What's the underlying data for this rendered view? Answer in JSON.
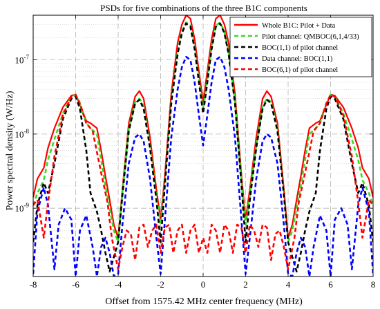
{
  "chart_data": {
    "type": "line",
    "title": "PSDs for five combinations of the three B1C components",
    "xlabel": "Offset from 1575.42 MHz center frequency (MHz)",
    "ylabel": "Power spectral density (W/Hz)",
    "xlim": [
      -8,
      8
    ],
    "ylim": [
      1.2e-10,
      4e-07
    ],
    "yscale": "log",
    "x_ticks": [
      -8,
      -6,
      -4,
      -2,
      0,
      2,
      4,
      6,
      8
    ],
    "x_tick_labels": [
      "-8",
      "-6",
      "-4",
      "-2",
      "0",
      "2",
      "4",
      "6",
      "8"
    ],
    "y_ticks": [
      1e-09,
      1e-08,
      1e-07
    ],
    "y_tick_labels": [
      {
        "base": "10",
        "exp": "-9"
      },
      {
        "base": "10",
        "exp": "-8"
      },
      {
        "base": "10",
        "exp": "-7"
      }
    ],
    "grid": true,
    "legend_position": "top-right",
    "series": [
      {
        "name": "Whole B1C: Pilot + Data",
        "color": "#ff0000",
        "dash": "solid",
        "x": [
          -8,
          -7.8,
          -7.5,
          -7.3,
          -7,
          -6.6,
          -6.2,
          -6,
          -5.8,
          -5.5,
          -5.3,
          -5,
          -4.8,
          -4.6,
          -4.4,
          -4.2,
          -4,
          -3.8,
          -3.5,
          -3.2,
          -3,
          -2.8,
          -2.5,
          -2.2,
          -2,
          -1.8,
          -1.5,
          -1.2,
          -1,
          -0.8,
          -0.6,
          -0.4,
          -0.2,
          0,
          0.2,
          0.4,
          0.6,
          0.8,
          1,
          1.2,
          1.5,
          1.8,
          2,
          2.2,
          2.5,
          2.8,
          3,
          3.2,
          3.5,
          3.8,
          4,
          4.2,
          4.4,
          4.6,
          4.8,
          5,
          5.3,
          5.5,
          5.8,
          6,
          6.2,
          6.6,
          7,
          7.3,
          7.5,
          7.8,
          8
        ],
        "y": [
          1.4e-09,
          2.5e-09,
          3.5e-09,
          6.5e-09,
          1.2e-08,
          2.3e-08,
          3.3e-08,
          3.4e-08,
          2.5e-08,
          1.5e-08,
          1.4e-08,
          1.2e-08,
          6e-09,
          2.7e-09,
          1.3e-09,
          6e-10,
          4e-10,
          1.8e-09,
          1.4e-08,
          3.2e-08,
          3.8e-08,
          3e-08,
          9e-09,
          1.8e-09,
          7e-10,
          2.8e-09,
          3.5e-08,
          1.7e-07,
          3e-07,
          4e-07,
          3.6e-07,
          1.9e-07,
          7e-08,
          2.7e-08,
          7e-08,
          1.9e-07,
          3.6e-07,
          4e-07,
          3e-07,
          1.7e-07,
          3.5e-08,
          2.8e-09,
          7e-10,
          1.8e-09,
          9e-09,
          3e-08,
          3.8e-08,
          3.2e-08,
          1.4e-08,
          1.8e-09,
          4e-10,
          6e-10,
          1.3e-09,
          2.7e-09,
          6e-09,
          1.2e-08,
          1.4e-08,
          1.5e-08,
          2.5e-08,
          3.4e-08,
          3.3e-08,
          2.3e-08,
          1.2e-08,
          6.5e-09,
          3.5e-09,
          2.5e-09,
          1.4e-09
        ]
      },
      {
        "name": "Pilot channel: QMBOC(6,1,4/33)",
        "color": "#33dd22",
        "dash": "dashed",
        "x": [
          -8,
          -7.8,
          -7.5,
          -7.3,
          -7,
          -6.6,
          -6.2,
          -6,
          -5.8,
          -5.5,
          -5.3,
          -5,
          -4.8,
          -4.6,
          -4.4,
          -4.2,
          -4,
          -3.8,
          -3.5,
          -3.2,
          -3,
          -2.8,
          -2.5,
          -2.2,
          -2,
          -1.8,
          -1.5,
          -1.2,
          -1,
          -0.8,
          -0.6,
          -0.4,
          -0.2,
          0,
          0.2,
          0.4,
          0.6,
          0.8,
          1,
          1.2,
          1.5,
          1.8,
          2,
          2.2,
          2.5,
          2.8,
          3,
          3.2,
          3.5,
          3.8,
          4,
          4.2,
          4.4,
          4.6,
          4.8,
          5,
          5.3,
          5.5,
          5.8,
          6,
          6.2,
          6.6,
          7,
          7.3,
          7.5,
          7.8,
          8
        ],
        "y": [
          1.1e-09,
          1.6e-09,
          2.4e-09,
          4.5e-09,
          8.5e-09,
          1.9e-08,
          3.2e-08,
          3.4e-08,
          2.5e-08,
          1.4e-08,
          1.2e-08,
          1e-08,
          4.5e-09,
          2e-09,
          1e-09,
          5e-10,
          3.5e-10,
          1.6e-09,
          1.2e-08,
          2.7e-08,
          3e-08,
          2.4e-08,
          7e-09,
          1.5e-09,
          6e-10,
          2.3e-09,
          2.8e-08,
          1.3e-07,
          2.4e-07,
          3.2e-07,
          2.9e-07,
          1.5e-07,
          5.5e-08,
          2.1e-08,
          5.5e-08,
          1.5e-07,
          2.9e-07,
          3.2e-07,
          2.4e-07,
          1.3e-07,
          2.8e-08,
          2.3e-09,
          6e-10,
          1.5e-09,
          7e-09,
          2.4e-08,
          3e-08,
          2.7e-08,
          1.2e-08,
          1.6e-09,
          3.5e-10,
          5e-10,
          1e-09,
          2e-09,
          4.5e-09,
          1e-08,
          1.2e-08,
          1.4e-08,
          2.5e-08,
          3.4e-08,
          3.2e-08,
          1.9e-08,
          8.5e-09,
          4.5e-09,
          2.4e-09,
          1.6e-09,
          1.1e-09
        ]
      },
      {
        "name": "BOC(1,1) of pilot channel",
        "color": "#000000",
        "dash": "dashed",
        "x": [
          -8,
          -7.8,
          -7.5,
          -7.3,
          -7,
          -6.6,
          -6.2,
          -6,
          -5.8,
          -5.5,
          -5.3,
          -5,
          -4.8,
          -4.6,
          -4.4,
          -4.2,
          -4,
          -3.8,
          -3.5,
          -3.2,
          -3,
          -2.8,
          -2.5,
          -2.2,
          -2,
          -1.8,
          -1.5,
          -1.2,
          -1,
          -0.8,
          -0.6,
          -0.4,
          -0.2,
          0,
          0.2,
          0.4,
          0.6,
          0.8,
          1,
          1.2,
          1.5,
          1.8,
          2,
          2.2,
          2.5,
          2.8,
          3,
          3.2,
          3.5,
          3.8,
          4,
          4.2,
          4.4,
          4.6,
          4.8,
          5,
          5.3,
          5.5,
          5.8,
          6,
          6.2,
          6.6,
          7,
          7.3,
          7.5,
          7.8,
          8
        ],
        "y": [
          3.5e-10,
          1.1e-09,
          2.2e-09,
          1.6e-09,
          4e-09,
          1.6e-08,
          3e-08,
          3.2e-08,
          2.2e-08,
          6e-09,
          1.6e-09,
          9e-10,
          5e-10,
          2.5e-10,
          1.4e-10,
          2.2e-10,
          3.5e-10,
          1.5e-09,
          1.1e-08,
          2.6e-08,
          2.9e-08,
          2.2e-08,
          6.5e-09,
          1.3e-09,
          3.5e-10,
          2.1e-09,
          2.6e-08,
          1.2e-07,
          2.3e-07,
          3.1e-07,
          2.8e-07,
          1.4e-07,
          5e-08,
          1.9e-08,
          5e-08,
          1.4e-07,
          2.8e-07,
          3.1e-07,
          2.3e-07,
          1.2e-07,
          2.6e-08,
          2.1e-09,
          3.5e-10,
          1.3e-09,
          6.5e-09,
          2.2e-08,
          2.9e-08,
          2.6e-08,
          1.1e-08,
          1.5e-09,
          3.5e-10,
          2.2e-10,
          1.4e-10,
          2.5e-10,
          5e-10,
          9e-10,
          1.6e-09,
          6e-09,
          2.2e-08,
          3.2e-08,
          3e-08,
          1.6e-08,
          4e-09,
          1.6e-09,
          2.2e-09,
          1.1e-09,
          3.5e-10
        ]
      },
      {
        "name": "Data channel: BOC(1,1)",
        "color": "#0000ff",
        "dash": "dashed",
        "x": [
          -8,
          -7.8,
          -7.5,
          -7.3,
          -7,
          -6.8,
          -6.5,
          -6.2,
          -6,
          -5.8,
          -5.5,
          -5.2,
          -5,
          -4.8,
          -4.6,
          -4.4,
          -4.2,
          -4,
          -3.8,
          -3.5,
          -3.2,
          -3,
          -2.8,
          -2.5,
          -2.2,
          -2,
          -1.8,
          -1.5,
          -1.2,
          -1,
          -0.8,
          -0.6,
          -0.4,
          -0.2,
          0,
          0.2,
          0.4,
          0.6,
          0.8,
          1,
          1.2,
          1.5,
          1.8,
          2,
          2.2,
          2.5,
          2.8,
          3,
          3.2,
          3.5,
          3.8,
          4,
          4.2,
          4.4,
          4.6,
          4.8,
          5,
          5.2,
          5.5,
          5.8,
          6,
          6.2,
          6.5,
          6.8,
          7,
          7.3,
          7.5,
          7.8,
          8
        ],
        "y": [
          1.3e-10,
          9e-10,
          1.9e-09,
          1.1e-09,
          1.5e-10,
          6e-10,
          1e-09,
          7e-10,
          1.2e-10,
          5e-10,
          8e-10,
          3e-10,
          1.2e-10,
          3e-10,
          4e-10,
          2.5e-10,
          1.2e-10,
          1.3e-10,
          6e-10,
          4e-09,
          9e-09,
          1e-08,
          8e-09,
          2.5e-09,
          4e-10,
          1.3e-10,
          7e-10,
          9e-09,
          4e-08,
          8e-08,
          1.1e-07,
          1e-07,
          5e-08,
          1.8e-08,
          7e-09,
          1.8e-08,
          5e-08,
          1e-07,
          1.1e-07,
          8e-08,
          4e-08,
          9e-09,
          7e-10,
          1.3e-10,
          4e-10,
          2.5e-09,
          8e-09,
          1e-08,
          9e-09,
          4e-09,
          6e-10,
          1.3e-10,
          1.2e-10,
          2.5e-10,
          4e-10,
          3e-10,
          1.2e-10,
          3e-10,
          8e-10,
          5e-10,
          1.2e-10,
          7e-10,
          1e-09,
          6e-10,
          1.5e-10,
          1.1e-09,
          1.9e-09,
          9e-10,
          1.3e-10
        ]
      },
      {
        "name": "BOC(6,1) of pilot channel",
        "color": "#ff0000",
        "dash": "dashed",
        "x": [
          -8,
          -7.8,
          -7.5,
          -7.3,
          -7,
          -6.6,
          -6.2,
          -6,
          -5.8,
          -5.5,
          -5.2,
          -4.8,
          -4.5,
          -4.3,
          -4,
          -3.8,
          -3.6,
          -3.4,
          -3.2,
          -3,
          -2.8,
          -2.6,
          -2.4,
          -2.2,
          -2,
          -1.8,
          -1.6,
          -1.4,
          -1.2,
          -1,
          -0.8,
          -0.6,
          -0.4,
          -0.2,
          0,
          0.2,
          0.4,
          0.6,
          0.8,
          1,
          1.2,
          1.4,
          1.6,
          1.8,
          2,
          2.2,
          2.4,
          2.6,
          2.8,
          3,
          3.2,
          3.4,
          3.6,
          3.8,
          4,
          4.3,
          4.5,
          4.8,
          5.2,
          5.5,
          5.8,
          6,
          6.2,
          6.6,
          7,
          7.3,
          7.5,
          7.8,
          8
        ],
        "y": [
          1.1e-09,
          1.3e-09,
          4e-10,
          1.2e-09,
          5e-09,
          1.8e-08,
          3.2e-08,
          3.4e-08,
          2.6e-08,
          1.4e-08,
          1.1e-08,
          3e-09,
          1.2e-09,
          4e-10,
          1.5e-10,
          3e-10,
          5e-10,
          4.5e-10,
          2e-10,
          5.5e-10,
          6e-10,
          3e-10,
          5e-10,
          6e-10,
          2.5e-10,
          5.5e-10,
          6e-10,
          2.5e-10,
          5e-10,
          6e-10,
          2.5e-10,
          5e-10,
          6e-10,
          2.5e-10,
          4e-10,
          2.5e-10,
          6e-10,
          5e-10,
          2.5e-10,
          6e-10,
          5e-10,
          2.5e-10,
          6e-10,
          5.5e-10,
          2.5e-10,
          6e-10,
          5e-10,
          3e-10,
          6e-10,
          5.5e-10,
          2e-10,
          4.5e-10,
          5e-10,
          3e-10,
          1.5e-10,
          4e-10,
          1.2e-09,
          3e-09,
          1.1e-08,
          1.4e-08,
          2.6e-08,
          3.4e-08,
          3.2e-08,
          1.8e-08,
          5e-09,
          1.2e-09,
          4e-10,
          1.3e-09,
          1.1e-09
        ]
      }
    ]
  }
}
